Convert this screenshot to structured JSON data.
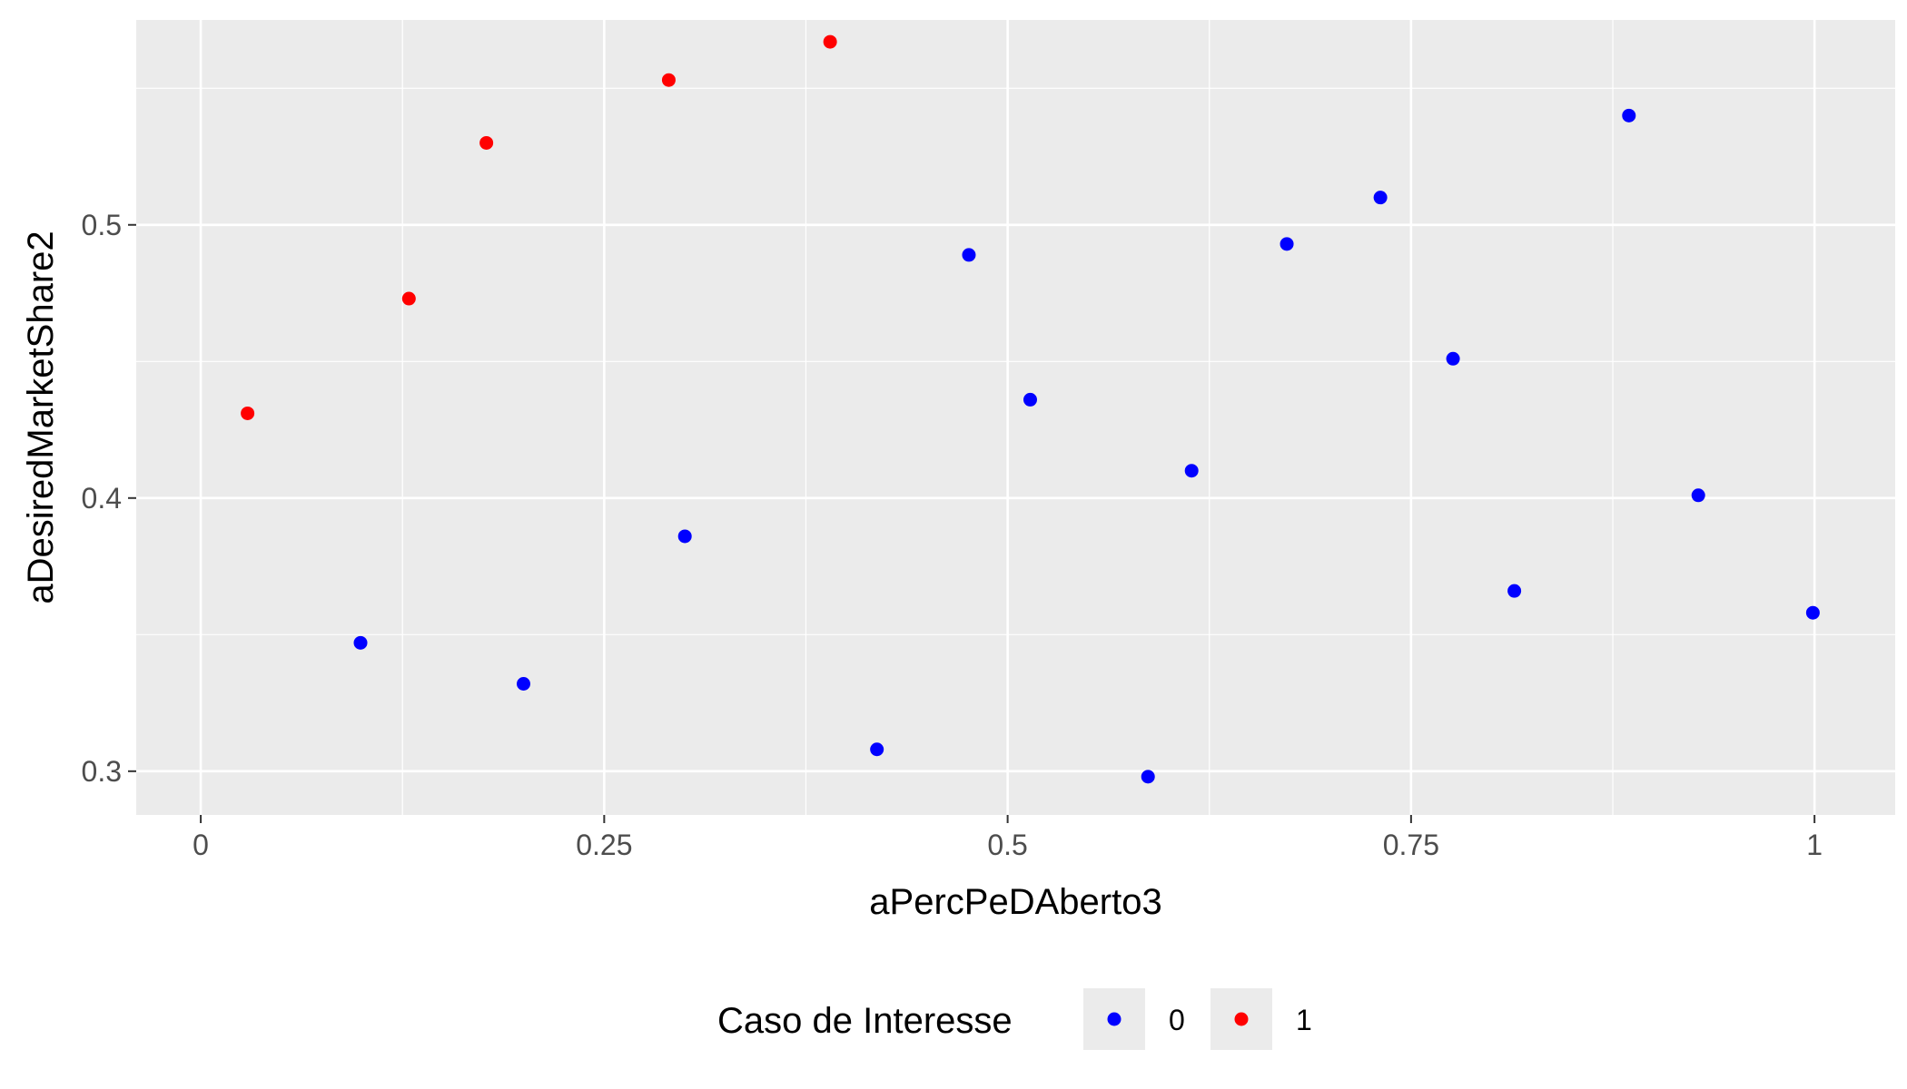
{
  "chart_data": {
    "type": "scatter",
    "title": "",
    "xlabel": "aPercPeDAberto3",
    "ylabel": "aDesiredMarketShare2",
    "xlim": [
      -0.04,
      1.05
    ],
    "ylim": [
      0.284,
      0.575
    ],
    "x_ticks": [
      0,
      0.25,
      0.5,
      0.75,
      1
    ],
    "x_tick_labels": [
      "0",
      "0.25",
      "0.5",
      "0.75",
      "1"
    ],
    "y_ticks": [
      0.3,
      0.4,
      0.5
    ],
    "y_tick_labels": [
      "0.3",
      "0.4",
      "0.5"
    ],
    "grid": true,
    "legend": {
      "title": "Caso de Interesse",
      "position": "bottom",
      "entries": [
        {
          "label": "0",
          "color": "#0000ff"
        },
        {
          "label": "1",
          "color": "#ff0000"
        }
      ]
    },
    "series": [
      {
        "name": "0",
        "color": "#0000ff",
        "points": [
          {
            "x": 0.099,
            "y": 0.347
          },
          {
            "x": 0.2,
            "y": 0.332
          },
          {
            "x": 0.3,
            "y": 0.386
          },
          {
            "x": 0.419,
            "y": 0.308
          },
          {
            "x": 0.476,
            "y": 0.489
          },
          {
            "x": 0.514,
            "y": 0.436
          },
          {
            "x": 0.587,
            "y": 0.298
          },
          {
            "x": 0.614,
            "y": 0.41
          },
          {
            "x": 0.673,
            "y": 0.493
          },
          {
            "x": 0.731,
            "y": 0.51
          },
          {
            "x": 0.776,
            "y": 0.451
          },
          {
            "x": 0.814,
            "y": 0.366
          },
          {
            "x": 0.885,
            "y": 0.54
          },
          {
            "x": 0.928,
            "y": 0.401
          },
          {
            "x": 0.999,
            "y": 0.358
          }
        ]
      },
      {
        "name": "1",
        "color": "#ff0000",
        "points": [
          {
            "x": 0.029,
            "y": 0.431
          },
          {
            "x": 0.129,
            "y": 0.473
          },
          {
            "x": 0.177,
            "y": 0.53
          },
          {
            "x": 0.29,
            "y": 0.553
          },
          {
            "x": 0.39,
            "y": 0.567
          }
        ]
      }
    ]
  }
}
